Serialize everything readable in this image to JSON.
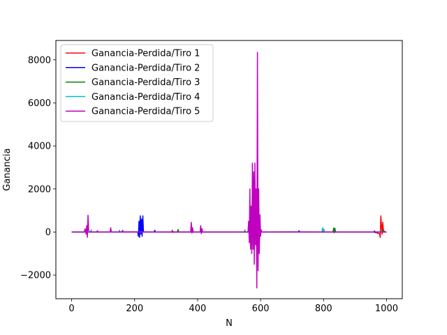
{
  "chart_data": {
    "type": "line",
    "xlabel": "N",
    "ylabel": "Ganancia",
    "xlim": [
      -50,
      1050
    ],
    "ylim": [
      -3100,
      8900
    ],
    "xticks": [
      0,
      200,
      400,
      600,
      800,
      1000
    ],
    "yticks": [
      -2000,
      0,
      2000,
      4000,
      6000,
      8000
    ],
    "xtick_labels": [
      "0",
      "200",
      "400",
      "600",
      "800",
      "1000"
    ],
    "ytick_labels": [
      "−2000",
      "0",
      "2000",
      "4000",
      "6000",
      "8000"
    ],
    "grid": false,
    "legend_position": "top-left",
    "series": [
      {
        "name": "Ganancia-Perdida/Tiro 1",
        "color": "#ff0000",
        "points": [
          [
            0,
            0
          ],
          [
            200,
            10
          ],
          [
            318,
            0
          ],
          [
            320,
            80
          ],
          [
            322,
            -20
          ],
          [
            324,
            0
          ],
          [
            500,
            0
          ],
          [
            700,
            10
          ],
          [
            960,
            0
          ],
          [
            978,
            -80
          ],
          [
            980,
            -250
          ],
          [
            982,
            750
          ],
          [
            984,
            300
          ],
          [
            986,
            -100
          ],
          [
            988,
            450
          ],
          [
            990,
            100
          ],
          [
            992,
            50
          ],
          [
            995,
            0
          ],
          [
            1000,
            0
          ]
        ]
      },
      {
        "name": "Ganancia-Perdida/Tiro 2",
        "color": "#0000ff",
        "points": [
          [
            0,
            0
          ],
          [
            100,
            0
          ],
          [
            210,
            0
          ],
          [
            212,
            -200
          ],
          [
            214,
            500
          ],
          [
            216,
            -250
          ],
          [
            218,
            750
          ],
          [
            220,
            -100
          ],
          [
            222,
            600
          ],
          [
            224,
            -200
          ],
          [
            226,
            750
          ],
          [
            228,
            0
          ],
          [
            262,
            0
          ],
          [
            264,
            80
          ],
          [
            266,
            0
          ],
          [
            600,
            0
          ],
          [
            720,
            0
          ],
          [
            722,
            60
          ],
          [
            724,
            0
          ],
          [
            960,
            0
          ],
          [
            962,
            50
          ],
          [
            964,
            -30
          ],
          [
            966,
            0
          ],
          [
            1000,
            0
          ]
        ]
      },
      {
        "name": "Ganancia-Perdida/Tiro 3",
        "color": "#008000",
        "points": [
          [
            0,
            0
          ],
          [
            336,
            0
          ],
          [
            338,
            120
          ],
          [
            340,
            0
          ],
          [
            600,
            0
          ],
          [
            830,
            0
          ],
          [
            832,
            180
          ],
          [
            834,
            -40
          ],
          [
            836,
            180
          ],
          [
            838,
            0
          ],
          [
            985,
            0
          ],
          [
            987,
            120
          ],
          [
            989,
            0
          ],
          [
            1000,
            0
          ]
        ]
      },
      {
        "name": "Ganancia-Perdida/Tiro 4",
        "color": "#00bfbf",
        "points": [
          [
            0,
            0
          ],
          [
            60,
            0
          ],
          [
            62,
            100
          ],
          [
            64,
            0
          ],
          [
            150,
            0
          ],
          [
            152,
            80
          ],
          [
            154,
            0
          ],
          [
            400,
            0
          ],
          [
            548,
            0
          ],
          [
            550,
            100
          ],
          [
            552,
            0
          ],
          [
            795,
            0
          ],
          [
            797,
            200
          ],
          [
            799,
            -30
          ],
          [
            801,
            130
          ],
          [
            803,
            0
          ],
          [
            1000,
            0
          ]
        ]
      },
      {
        "name": "Ganancia-Perdida/Tiro 5",
        "color": "#bf00bf",
        "points": [
          [
            0,
            0
          ],
          [
            40,
            0
          ],
          [
            43,
            150
          ],
          [
            46,
            -100
          ],
          [
            48,
            300
          ],
          [
            50,
            -250
          ],
          [
            52,
            780
          ],
          [
            54,
            100
          ],
          [
            56,
            0
          ],
          [
            80,
            0
          ],
          [
            82,
            60
          ],
          [
            84,
            0
          ],
          [
            122,
            0
          ],
          [
            124,
            200
          ],
          [
            126,
            0
          ],
          [
            160,
            0
          ],
          [
            162,
            80
          ],
          [
            164,
            0
          ],
          [
            378,
            0
          ],
          [
            380,
            450
          ],
          [
            382,
            -50
          ],
          [
            384,
            200
          ],
          [
            386,
            0
          ],
          [
            408,
            0
          ],
          [
            410,
            300
          ],
          [
            412,
            -80
          ],
          [
            414,
            150
          ],
          [
            416,
            0
          ],
          [
            560,
            0
          ],
          [
            562,
            500
          ],
          [
            564,
            -500
          ],
          [
            566,
            2000
          ],
          [
            568,
            -800
          ],
          [
            570,
            1200
          ],
          [
            572,
            -1000
          ],
          [
            574,
            3200
          ],
          [
            576,
            -800
          ],
          [
            578,
            2800
          ],
          [
            580,
            -1500
          ],
          [
            582,
            3200
          ],
          [
            584,
            -600
          ],
          [
            586,
            2000
          ],
          [
            588,
            -2600
          ],
          [
            590,
            8350
          ],
          [
            592,
            -1800
          ],
          [
            594,
            2000
          ],
          [
            596,
            -1000
          ],
          [
            598,
            800
          ],
          [
            600,
            -200
          ],
          [
            602,
            100
          ],
          [
            604,
            0
          ],
          [
            1000,
            0
          ]
        ]
      }
    ]
  }
}
